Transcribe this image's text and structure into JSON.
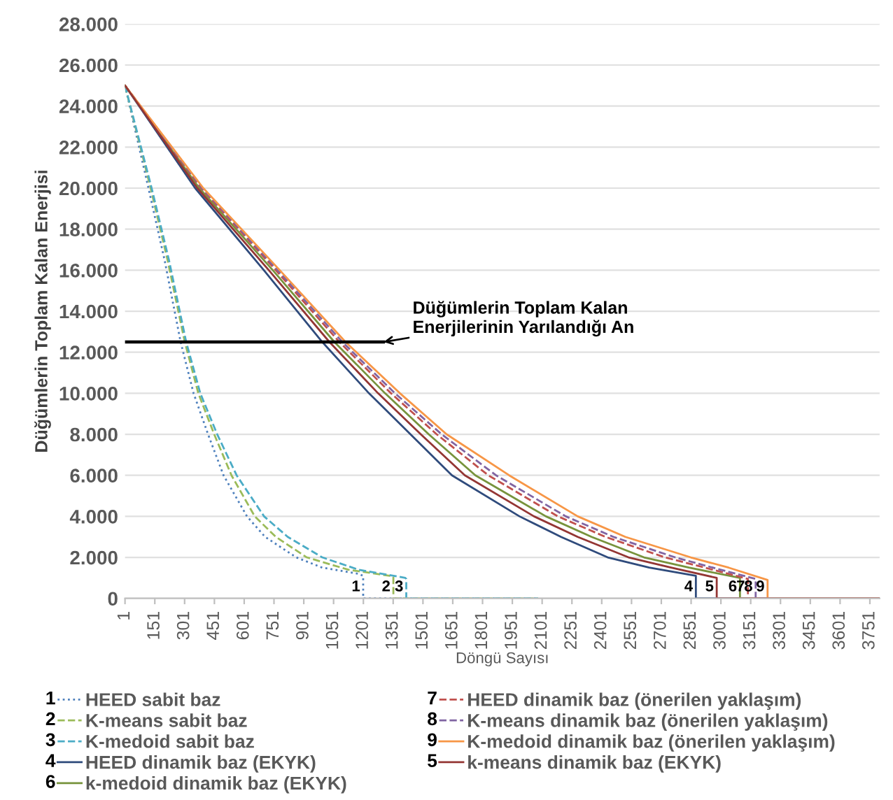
{
  "chart_data": {
    "type": "line",
    "xlabel": "Döngü Sayısı",
    "ylabel": "Düğümlerin Toplam Kalan Enerjisi",
    "xlim": [
      1,
      3800
    ],
    "xticks": [
      1,
      151,
      301,
      451,
      601,
      751,
      901,
      1051,
      1201,
      1351,
      1501,
      1651,
      1801,
      1951,
      2101,
      2251,
      2401,
      2551,
      2701,
      2851,
      3001,
      3151,
      3301,
      3451,
      3601,
      3751
    ],
    "ylim": [
      0,
      28000
    ],
    "yticks": [
      0,
      {
        "value": 2000,
        "label": "2.000"
      },
      {
        "value": 4000,
        "label": "4.000"
      },
      {
        "value": 6000,
        "label": "6.000"
      },
      {
        "value": 8000,
        "label": "8.000"
      },
      {
        "value": 10000,
        "label": "10.000"
      },
      {
        "value": 12000,
        "label": "12.000"
      },
      {
        "value": 14000,
        "label": "14.000"
      },
      {
        "value": 16000,
        "label": "16.000"
      },
      {
        "value": 18000,
        "label": "18.000"
      },
      {
        "value": 20000,
        "label": "20.000"
      },
      {
        "value": 22000,
        "label": "22.000"
      },
      {
        "value": 24000,
        "label": "24.000"
      },
      {
        "value": 26000,
        "label": "26.000"
      },
      {
        "value": 28000,
        "label": "28.000"
      }
    ],
    "grid": "y",
    "legend": "bottom",
    "marker": "none",
    "series": [
      {
        "name": "HEED sabit baz",
        "color": "#4f81bd",
        "line_style": "dotted",
        "x": [
          1,
          119,
          200,
          281,
          346,
          419,
          497,
          615,
          706,
          863,
          994,
          1177,
          1200,
          1200,
          2080
        ],
        "values": [
          25000,
          20000,
          16500,
          12500,
          10000,
          8000,
          6000,
          4000,
          3000,
          2000,
          1500,
          1200,
          1100,
          0,
          0
        ]
      },
      {
        "name": "K-means sabit baz",
        "color": "#9bbb59",
        "line_style": "dashed",
        "x": [
          1,
          130,
          215,
          302,
          370,
          450,
          537,
          654,
          760,
          916,
          1125,
          1334,
          1352,
          1352,
          2080
        ],
        "values": [
          25000,
          20000,
          16500,
          12500,
          10000,
          8000,
          6000,
          4000,
          3000,
          2000,
          1400,
          1100,
          1050,
          0,
          0
        ]
      },
      {
        "name": "K-medoid sabit baz",
        "color": "#4bacc6",
        "line_style": "dashed",
        "x": [
          1,
          135,
          222,
          309,
          380,
          465,
          563,
          701,
          820,
          994,
          1177,
          1412,
          1417,
          1417,
          2080
        ],
        "values": [
          25000,
          20000,
          16500,
          12500,
          10000,
          8000,
          6000,
          4000,
          3000,
          2000,
          1400,
          1000,
          950,
          0,
          0
        ]
      },
      {
        "name": "HEED dinamik baz (EKYK)",
        "color": "#2f4b7c",
        "line_style": "solid",
        "x": [
          1,
          354,
          700,
          994,
          1229,
          1438,
          1647,
          1987,
          2196,
          2431,
          2640,
          2875,
          2875,
          3800
        ],
        "values": [
          25000,
          20000,
          16000,
          12500,
          10000,
          8000,
          6000,
          4000,
          3000,
          2000,
          1500,
          1100,
          0,
          0
        ]
      },
      {
        "name": "k-medoid dinamik baz (EKYK)",
        "color": "#77933c",
        "line_style": "solid",
        "x": [
          1,
          375,
          745,
          1055,
          1310,
          1530,
          1765,
          2120,
          2350,
          2614,
          2840,
          3097,
          3097,
          3800
        ],
        "values": [
          25000,
          20000,
          16000,
          12500,
          10000,
          8000,
          6000,
          4000,
          3000,
          2000,
          1500,
          1000,
          0,
          0
        ]
      },
      {
        "name": "HEED dinamik baz (önerilen yaklaşım)",
        "color": "#c0504d",
        "line_style": "dashed",
        "x": [
          1,
          385,
          760,
          1080,
          1340,
          1570,
          1830,
          2180,
          2420,
          2719,
          2920,
          3137,
          3137,
          3800
        ],
        "values": [
          25000,
          20000,
          16000,
          12500,
          10000,
          8000,
          6000,
          4000,
          3000,
          2000,
          1500,
          950,
          0,
          0
        ]
      },
      {
        "name": "K-means dinamik baz (önerilen yaklaşım)",
        "color": "#8064a2",
        "line_style": "dashed",
        "x": [
          1,
          390,
          770,
          1095,
          1360,
          1595,
          1869,
          2220,
          2460,
          2771,
          2960,
          3176,
          3176,
          3800
        ],
        "values": [
          25000,
          20000,
          16000,
          12500,
          10000,
          8000,
          6000,
          4000,
          3000,
          2000,
          1500,
          950,
          0,
          0
        ]
      },
      {
        "name": "K-medoid dinamik baz (önerilen yaklaşım)",
        "color": "#f79646",
        "line_style": "solid",
        "x": [
          1,
          395,
          780,
          1111,
          1385,
          1620,
          1935,
          2280,
          2520,
          2849,
          3040,
          3236,
          3236,
          3800
        ],
        "values": [
          25000,
          20000,
          16000,
          12500,
          10000,
          8000,
          6000,
          4000,
          3000,
          2000,
          1500,
          900,
          0,
          0
        ]
      },
      {
        "name": "k-means dinamik baz (EKYK)",
        "color": "#943634",
        "line_style": "solid",
        "x": [
          1,
          365,
          725,
          1030,
          1275,
          1490,
          1712,
          2060,
          2280,
          2536,
          2750,
          2980,
          2980,
          3800
        ],
        "values": [
          25000,
          20000,
          16000,
          12500,
          10000,
          8000,
          6000,
          4000,
          3000,
          2000,
          1500,
          1000,
          0,
          0
        ]
      },
      {
        "color": "#000000",
        "line_style": "solid",
        "x": [
          1,
          1302
        ],
        "values": [
          12500,
          12500
        ]
      }
    ],
    "annotations": [
      {
        "text": "1",
        "x": 1200,
        "y": 0
      },
      {
        "text": "2",
        "x": 1352,
        "y": 0
      },
      {
        "text": "3",
        "x": 1417,
        "y": 0
      },
      {
        "text": "4",
        "x": 2875,
        "y": 0
      },
      {
        "text": "6",
        "x": 3097,
        "y": 0
      },
      {
        "text": "7",
        "x": 3137,
        "y": 0
      },
      {
        "text": "8",
        "x": 3176,
        "y": 0
      },
      {
        "text": "9",
        "x": 3236,
        "y": 0
      },
      {
        "text": "5",
        "x": 2980,
        "y": 0
      },
      {
        "text": "Düğümlerin Toplam Kalan\nEnerjilerinin Yarılandığı An",
        "x": 1302,
        "y": 12500
      }
    ]
  }
}
